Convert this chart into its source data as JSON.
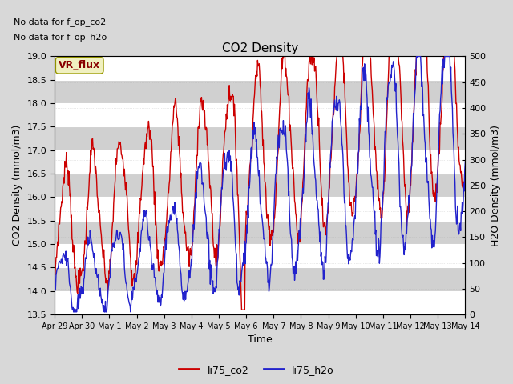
{
  "title": "CO2 Density",
  "xlabel": "Time",
  "ylabel_left": "CO2 Density (mmol/m3)",
  "ylabel_right": "H2O Density (mmol/m3)",
  "text_line1": "No data for f_op_co2",
  "text_line2": "No data for f_op_h2o",
  "box_label": "VR_flux",
  "legend_entries": [
    "li75_co2",
    "li75_h2o"
  ],
  "color_co2": "#cc0000",
  "color_h2o": "#2222cc",
  "ylim_left": [
    13.5,
    19.0
  ],
  "ylim_right": [
    0,
    500
  ],
  "yticks_left": [
    13.5,
    14.0,
    14.5,
    15.0,
    15.5,
    16.0,
    16.5,
    17.0,
    17.5,
    18.0,
    18.5,
    19.0
  ],
  "yticks_right": [
    0,
    50,
    100,
    150,
    200,
    250,
    300,
    350,
    400,
    450,
    500
  ],
  "xtick_positions": [
    0,
    1,
    2,
    3,
    4,
    5,
    6,
    7,
    8,
    9,
    10,
    11,
    12,
    13,
    14,
    15
  ],
  "xtick_labels": [
    "Apr 29",
    "Apr 30",
    "May 1",
    "May 2",
    "May 3",
    "May 4",
    "May 5",
    "May 6",
    "May 7",
    "May 8",
    "May 9",
    "May 10",
    "May 11",
    "May 12",
    "May 13",
    "May 14"
  ],
  "background_color": "#d8d8d8",
  "plot_bg_color": "#e8e8e8",
  "grid_color": "#ffffff",
  "stripe_color": "#d0d0d0",
  "figsize": [
    6.4,
    4.8
  ],
  "dpi": 100
}
